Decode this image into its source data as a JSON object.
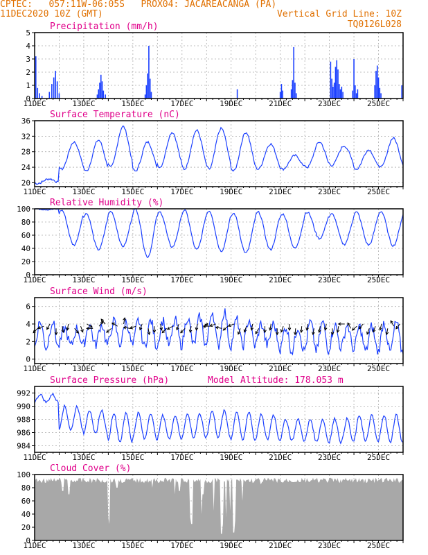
{
  "header": {
    "line1_left": "CPTEC:   057:11W-06:05S   PROX04: JACAREACANGA (PA)",
    "line2_left": "11DEC2020 10Z (GMT)",
    "line2_right": "Vertical Grid Line: 10Z",
    "line3_right": "TQ0126L028"
  },
  "chart_data": [
    {
      "id": "precip",
      "type": "bar",
      "title": "Precipitation (mm/h)",
      "ylim": [
        0,
        5
      ],
      "yticks": [
        0,
        1,
        2,
        3,
        4,
        5
      ],
      "color": "#1a3fff",
      "x_ticks": [
        "11DEC",
        "13DEC",
        "15DEC",
        "17DEC",
        "19DEC",
        "21DEC",
        "23DEC",
        "25DEC"
      ],
      "events": [
        {
          "day": 0.05,
          "value": 3.2
        },
        {
          "day": 0.12,
          "value": 0.8
        },
        {
          "day": 0.2,
          "value": 0.4
        },
        {
          "day": 0.3,
          "value": 0.2
        },
        {
          "day": 0.6,
          "value": 0.5
        },
        {
          "day": 0.7,
          "value": 1.1
        },
        {
          "day": 0.78,
          "value": 1.6
        },
        {
          "day": 0.85,
          "value": 2.1
        },
        {
          "day": 0.92,
          "value": 1.3
        },
        {
          "day": 1.0,
          "value": 0.4
        },
        {
          "day": 2.55,
          "value": 0.3
        },
        {
          "day": 2.6,
          "value": 0.7
        },
        {
          "day": 2.65,
          "value": 1.2
        },
        {
          "day": 2.7,
          "value": 1.8
        },
        {
          "day": 2.75,
          "value": 1.3
        },
        {
          "day": 2.8,
          "value": 0.6
        },
        {
          "day": 2.88,
          "value": 0.3
        },
        {
          "day": 4.5,
          "value": 0.3
        },
        {
          "day": 4.55,
          "value": 1.0
        },
        {
          "day": 4.6,
          "value": 1.9
        },
        {
          "day": 4.65,
          "value": 4.0
        },
        {
          "day": 4.7,
          "value": 1.5
        },
        {
          "day": 4.75,
          "value": 0.5
        },
        {
          "day": 8.25,
          "value": 0.7
        },
        {
          "day": 10.0,
          "value": 0.5
        },
        {
          "day": 10.05,
          "value": 1.1
        },
        {
          "day": 10.1,
          "value": 0.6
        },
        {
          "day": 10.45,
          "value": 0.7
        },
        {
          "day": 10.5,
          "value": 1.4
        },
        {
          "day": 10.55,
          "value": 3.9
        },
        {
          "day": 10.6,
          "value": 1.2
        },
        {
          "day": 10.65,
          "value": 0.4
        },
        {
          "day": 12.05,
          "value": 2.8
        },
        {
          "day": 12.1,
          "value": 1.5
        },
        {
          "day": 12.15,
          "value": 0.9
        },
        {
          "day": 12.2,
          "value": 1.2
        },
        {
          "day": 12.25,
          "value": 2.4
        },
        {
          "day": 12.3,
          "value": 2.9
        },
        {
          "day": 12.35,
          "value": 2.2
        },
        {
          "day": 12.4,
          "value": 1.1
        },
        {
          "day": 12.45,
          "value": 0.7
        },
        {
          "day": 12.5,
          "value": 0.9
        },
        {
          "day": 12.55,
          "value": 0.5
        },
        {
          "day": 12.95,
          "value": 0.6
        },
        {
          "day": 13.0,
          "value": 3.0
        },
        {
          "day": 13.05,
          "value": 1.0
        },
        {
          "day": 13.1,
          "value": 0.4
        },
        {
          "day": 13.15,
          "value": 0.7
        },
        {
          "day": 13.85,
          "value": 1.0
        },
        {
          "day": 13.9,
          "value": 2.1
        },
        {
          "day": 13.95,
          "value": 2.5
        },
        {
          "day": 14.0,
          "value": 1.6
        },
        {
          "day": 14.05,
          "value": 0.8
        },
        {
          "day": 14.1,
          "value": 0.4
        },
        {
          "day": 14.95,
          "value": 1.0
        }
      ]
    },
    {
      "id": "temp",
      "type": "line",
      "title": "Surface Temperature (nC)",
      "ylim": [
        19,
        36
      ],
      "yticks": [
        20,
        24,
        28,
        32,
        36
      ],
      "color": "#1a3fff",
      "x_ticks": [
        "11DEC",
        "13DEC",
        "15DEC",
        "17DEC",
        "19DEC",
        "21DEC",
        "23DEC",
        "25DEC"
      ],
      "day_max": [
        21,
        30.5,
        31,
        34.5,
        30.5,
        33,
        33.5,
        34,
        33,
        30,
        27,
        30.5,
        29.5,
        28.5,
        31.5
      ],
      "day_min": [
        19.8,
        23.5,
        23,
        24,
        23,
        24,
        23.5,
        23.5,
        23,
        23.5,
        23.5,
        24,
        24.5,
        23.5,
        24
      ]
    },
    {
      "id": "rh",
      "type": "line",
      "title": "Relative Humidity (%)",
      "ylim": [
        0,
        100
      ],
      "yticks": [
        0,
        20,
        40,
        60,
        80,
        100
      ],
      "color": "#1a3fff",
      "x_ticks": [
        "11DEC",
        "13DEC",
        "15DEC",
        "17DEC",
        "19DEC",
        "21DEC",
        "23DEC",
        "25DEC"
      ],
      "day_max": [
        100,
        98,
        93,
        96,
        100,
        95,
        98,
        97,
        93,
        95,
        92,
        95,
        92,
        95,
        96
      ],
      "day_min": [
        99,
        45,
        38,
        43,
        27,
        42,
        38,
        36,
        33,
        38,
        40,
        55,
        46,
        45,
        44
      ]
    },
    {
      "id": "wind",
      "type": "line",
      "title": "Surface Wind (m/s)",
      "ylim": [
        -0.5,
        7
      ],
      "yticks": [
        0,
        2,
        4,
        6
      ],
      "color": "#1a3fff",
      "x_ticks": [
        "11DEC",
        "13DEC",
        "15DEC",
        "17DEC",
        "19DEC",
        "21DEC",
        "23DEC",
        "25DEC"
      ],
      "day_mean": [
        2.8,
        2.5,
        2.8,
        3.0,
        2.9,
        3.0,
        3.2,
        3.5,
        3.0,
        2.8,
        2.3,
        2.6,
        2.6,
        2.3,
        2.5
      ],
      "day_amp": [
        1.5,
        1.0,
        1.2,
        1.3,
        1.5,
        1.4,
        1.6,
        2.0,
        1.5,
        1.2,
        1.4,
        1.6,
        1.3,
        1.4,
        1.7
      ],
      "arrow_angles": [
        225,
        250,
        210,
        180,
        170,
        190,
        140,
        160,
        120,
        270,
        40,
        320,
        230,
        300,
        10,
        280,
        250,
        200,
        170,
        180,
        170,
        225,
        240,
        200,
        225,
        190,
        190,
        40,
        270,
        250,
        280,
        230,
        250,
        200,
        200,
        190,
        210,
        180,
        190,
        180,
        200,
        180,
        185,
        185,
        190,
        190,
        190,
        190,
        180,
        190,
        270,
        330,
        230,
        220,
        200,
        200,
        195,
        190,
        330,
        220
      ]
    },
    {
      "id": "pres",
      "type": "line",
      "title": "Surface Pressure (hPa)",
      "subtitle": "Model Altitude: 178.053 m",
      "ylim": [
        983,
        993
      ],
      "yticks": [
        984,
        986,
        988,
        990,
        992
      ],
      "color": "#1a3fff",
      "x_ticks": [
        "11DEC",
        "13DEC",
        "15DEC",
        "17DEC",
        "19DEC",
        "21DEC",
        "23DEC",
        "25DEC"
      ],
      "day_mean": [
        991.2,
        988.2,
        987.6,
        986.8,
        987.0,
        986.8,
        987.0,
        987.3,
        987.0,
        986.8,
        986.4,
        986.3,
        986.3,
        986.6,
        986.6
      ],
      "day_amp": [
        0.6,
        1.8,
        1.8,
        2.2,
        2.0,
        1.8,
        1.8,
        2.0,
        2.2,
        1.9,
        1.6,
        1.7,
        1.8,
        2.0,
        2.1
      ]
    },
    {
      "id": "cloud",
      "type": "area",
      "title": "Cloud Cover (%)",
      "ylim": [
        0,
        100
      ],
      "yticks": [
        0,
        20,
        40,
        60,
        80,
        100
      ],
      "color": "#a8a8a8",
      "x_ticks": [
        "11DEC",
        "13DEC",
        "15DEC",
        "17DEC",
        "19DEC",
        "21DEC",
        "23DEC",
        "25DEC"
      ],
      "baseline": 95,
      "dips": [
        {
          "day": 1.15,
          "value": 75
        },
        {
          "day": 1.4,
          "value": 70
        },
        {
          "day": 2.2,
          "value": 88
        },
        {
          "day": 3.0,
          "value": 35
        },
        {
          "day": 3.05,
          "value": 25
        },
        {
          "day": 3.35,
          "value": 80
        },
        {
          "day": 4.8,
          "value": 80
        },
        {
          "day": 5.7,
          "value": 70
        },
        {
          "day": 5.9,
          "value": 75
        },
        {
          "day": 6.35,
          "value": 35
        },
        {
          "day": 6.4,
          "value": 25
        },
        {
          "day": 6.8,
          "value": 40
        },
        {
          "day": 6.85,
          "value": 70
        },
        {
          "day": 7.3,
          "value": 45
        },
        {
          "day": 7.6,
          "value": 10
        },
        {
          "day": 7.65,
          "value": 25
        },
        {
          "day": 7.8,
          "value": 35
        },
        {
          "day": 7.95,
          "value": 45
        },
        {
          "day": 8.1,
          "value": 12
        },
        {
          "day": 8.15,
          "value": 30
        },
        {
          "day": 8.45,
          "value": 60
        },
        {
          "day": 9.2,
          "value": 85
        },
        {
          "day": 10.1,
          "value": 88
        }
      ]
    }
  ]
}
